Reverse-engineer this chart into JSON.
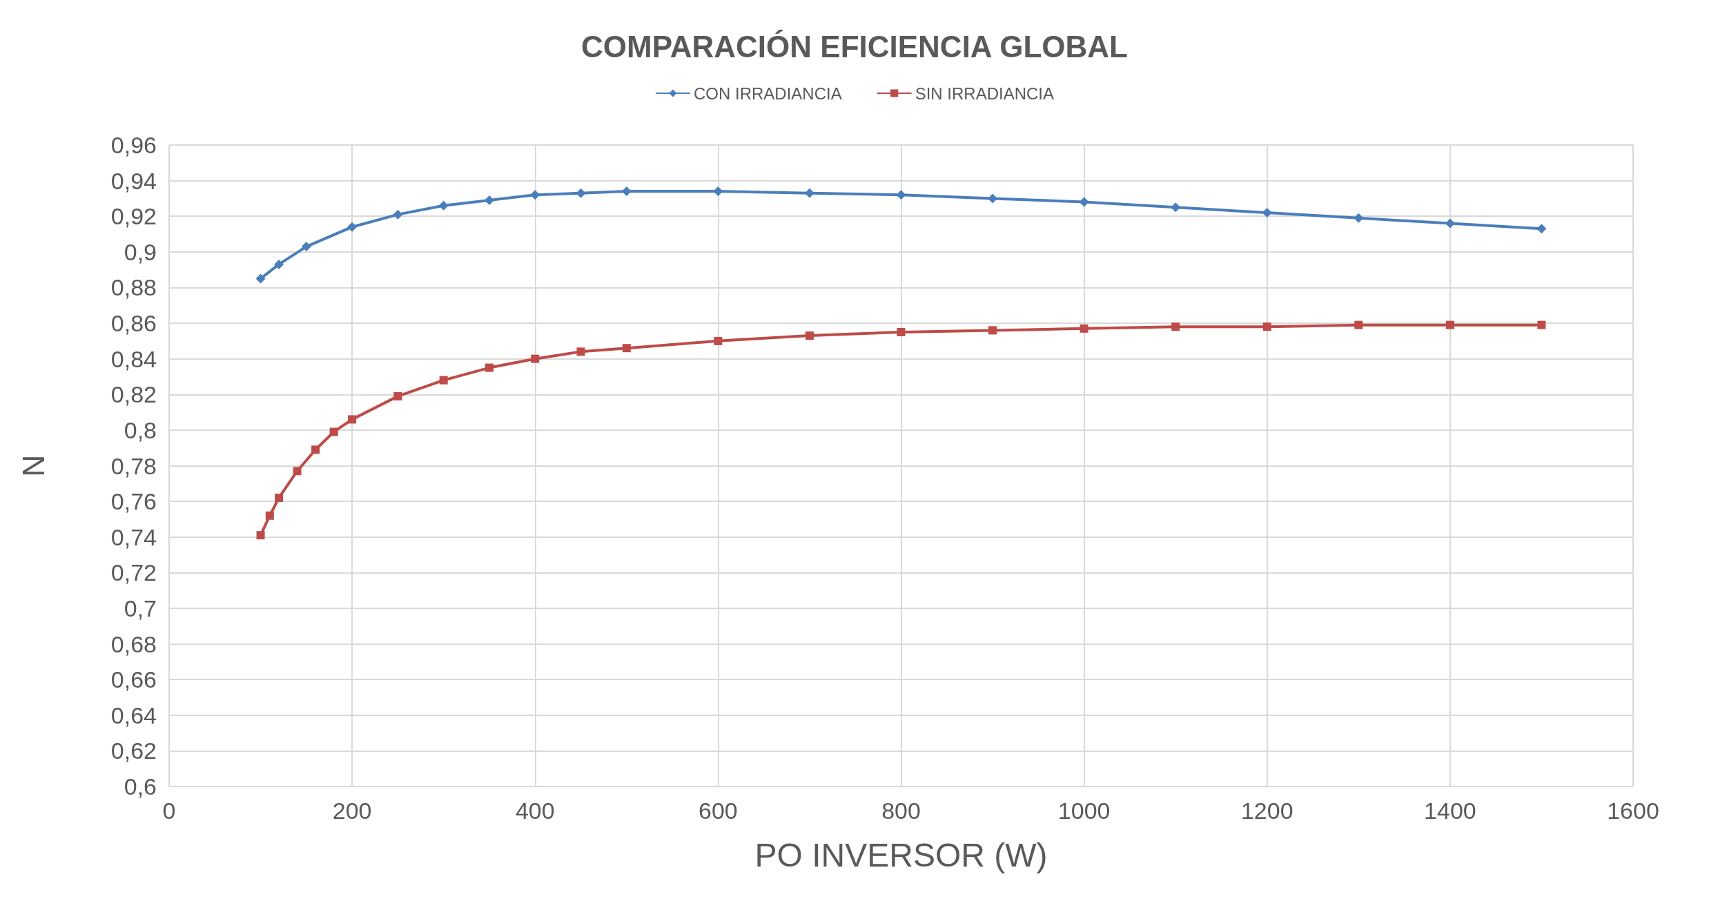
{
  "chart_data": {
    "type": "line",
    "title": "COMPARACIÓN EFICIENCIA GLOBAL",
    "xlabel": "PO INVERSOR (W)",
    "ylabel": "N",
    "xlim": [
      0,
      1600
    ],
    "xticks": [
      0,
      200,
      400,
      600,
      800,
      1000,
      1200,
      1400,
      1600
    ],
    "ylim": [
      0.6,
      0.96
    ],
    "yticks": [
      {
        "value": 0.6,
        "label": "0,6"
      },
      {
        "value": 0.62,
        "label": "0,62"
      },
      {
        "value": 0.64,
        "label": "0,64"
      },
      {
        "value": 0.66,
        "label": "0,66"
      },
      {
        "value": 0.68,
        "label": "0,68"
      },
      {
        "value": 0.7,
        "label": "0,7"
      },
      {
        "value": 0.72,
        "label": "0,72"
      },
      {
        "value": 0.74,
        "label": "0,74"
      },
      {
        "value": 0.76,
        "label": "0,76"
      },
      {
        "value": 0.78,
        "label": "0,78"
      },
      {
        "value": 0.8,
        "label": "0,8"
      },
      {
        "value": 0.82,
        "label": "0,82"
      },
      {
        "value": 0.84,
        "label": "0,84"
      },
      {
        "value": 0.86,
        "label": "0,86"
      },
      {
        "value": 0.88,
        "label": "0,88"
      },
      {
        "value": 0.9,
        "label": "0,9"
      },
      {
        "value": 0.92,
        "label": "0,92"
      },
      {
        "value": 0.94,
        "label": "0,94"
      },
      {
        "value": 0.96,
        "label": "0,96"
      }
    ],
    "grid": true,
    "legend": "top",
    "line_style": "solid",
    "series": [
      {
        "name": "CON IRRADIANCIA",
        "color": "#4a7ebb",
        "marker": "diamond",
        "x": [
          100,
          120,
          150,
          200,
          250,
          300,
          350,
          400,
          450,
          500,
          600,
          700,
          800,
          900,
          1000,
          1100,
          1200,
          1300,
          1400,
          1500
        ],
        "values": [
          0.885,
          0.893,
          0.903,
          0.914,
          0.921,
          0.926,
          0.929,
          0.932,
          0.933,
          0.934,
          0.934,
          0.933,
          0.932,
          0.93,
          0.928,
          0.925,
          0.922,
          0.919,
          0.916,
          0.913
        ]
      },
      {
        "name": "SIN IRRADIANCIA",
        "color": "#be4b48",
        "marker": "square",
        "x": [
          100,
          110,
          120,
          140,
          160,
          180,
          200,
          250,
          300,
          350,
          400,
          450,
          500,
          600,
          700,
          800,
          900,
          1000,
          1100,
          1200,
          1300,
          1400,
          1500
        ],
        "values": [
          0.741,
          0.752,
          0.762,
          0.777,
          0.789,
          0.799,
          0.806,
          0.819,
          0.828,
          0.835,
          0.84,
          0.844,
          0.846,
          0.85,
          0.853,
          0.855,
          0.856,
          0.857,
          0.858,
          0.858,
          0.859,
          0.859,
          0.859
        ]
      }
    ]
  }
}
